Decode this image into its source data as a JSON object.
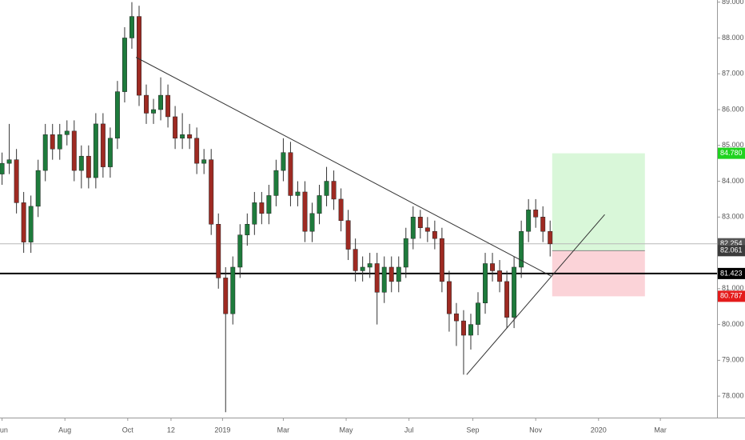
{
  "chart_data": {
    "type": "candlestick",
    "x": [
      0,
      7,
      14,
      21,
      28,
      35,
      42,
      49,
      56,
      63,
      70,
      77,
      84,
      91,
      98,
      105,
      112,
      119,
      126,
      133,
      140,
      147,
      154,
      161,
      168,
      175,
      182,
      189,
      196,
      203,
      210,
      217,
      224,
      231,
      238,
      245,
      252,
      259,
      266,
      273,
      280,
      287,
      294,
      301,
      308,
      315,
      322,
      329,
      336,
      343,
      350,
      357,
      364,
      371,
      378,
      385,
      392,
      399,
      406,
      413,
      420,
      427,
      434,
      441,
      448,
      455,
      462,
      469,
      476,
      483,
      490,
      497,
      504,
      511,
      518,
      525,
      532
    ],
    "open": [
      84.2,
      84.5,
      84.6,
      83.4,
      82.3,
      83.3,
      84.3,
      85.3,
      84.9,
      85.3,
      85.4,
      84.3,
      84.7,
      84.1,
      85.6,
      84.4,
      85.2,
      86.5,
      88.0,
      88.6,
      86.4,
      85.9,
      86.0,
      86.4,
      85.8,
      85.2,
      85.3,
      85.2,
      84.5,
      84.6,
      82.8,
      81.3,
      80.3,
      81.6,
      82.5,
      82.8,
      83.4,
      83.1,
      83.6,
      84.3,
      84.8,
      83.6,
      83.7,
      82.6,
      83.1,
      83.6,
      84.0,
      83.5,
      82.9,
      82.1,
      81.5,
      81.6,
      81.7,
      80.9,
      81.6,
      81.2,
      81.6,
      82.4,
      83.0,
      82.7,
      82.6,
      82.4,
      81.2,
      80.3,
      80.1,
      79.7,
      80.0,
      80.6,
      81.7,
      81.5,
      81.2,
      80.2,
      81.6,
      82.6,
      83.2,
      83.0,
      82.6
    ],
    "high": [
      84.8,
      85.6,
      84.9,
      83.7,
      83.6,
      84.6,
      85.6,
      85.6,
      85.6,
      85.7,
      85.7,
      85.0,
      85.0,
      85.9,
      85.9,
      85.5,
      86.8,
      88.3,
      89.0,
      88.9,
      86.7,
      86.3,
      86.9,
      86.7,
      86.1,
      85.9,
      85.6,
      85.5,
      84.9,
      84.9,
      83.1,
      81.6,
      81.9,
      82.8,
      83.1,
      83.7,
      83.7,
      83.9,
      84.6,
      85.2,
      85.1,
      84.0,
      84.0,
      83.4,
      83.9,
      84.4,
      84.3,
      83.8,
      83.2,
      82.4,
      81.9,
      82.0,
      82.0,
      81.9,
      81.9,
      81.9,
      82.7,
      83.3,
      83.2,
      83.0,
      82.9,
      82.7,
      81.5,
      80.6,
      80.4,
      80.3,
      80.9,
      82.0,
      82.0,
      81.8,
      81.5,
      81.9,
      82.9,
      83.5,
      83.5,
      83.3,
      82.9
    ],
    "low": [
      83.9,
      84.2,
      83.1,
      82.0,
      82.0,
      83.0,
      84.0,
      84.6,
      84.6,
      85.0,
      84.0,
      83.8,
      83.8,
      83.8,
      84.1,
      84.1,
      84.9,
      86.2,
      87.7,
      86.1,
      85.6,
      85.6,
      85.7,
      85.5,
      84.9,
      84.9,
      84.9,
      84.2,
      84.2,
      82.5,
      81.0,
      77.55,
      80.0,
      81.3,
      82.2,
      82.5,
      82.8,
      82.8,
      83.3,
      84.0,
      83.3,
      83.3,
      82.3,
      82.3,
      82.8,
      83.3,
      83.2,
      82.6,
      81.8,
      81.2,
      81.2,
      81.3,
      80.0,
      80.6,
      80.9,
      80.9,
      81.3,
      82.1,
      82.4,
      82.3,
      82.1,
      80.9,
      79.8,
      79.4,
      78.6,
      79.3,
      79.7,
      80.3,
      81.2,
      80.9,
      79.9,
      79.9,
      81.3,
      82.3,
      82.7,
      82.3,
      81.9
    ],
    "close": [
      84.5,
      84.6,
      83.4,
      82.3,
      83.3,
      84.3,
      85.3,
      84.9,
      85.3,
      85.4,
      84.3,
      84.7,
      84.1,
      85.6,
      84.4,
      85.2,
      86.5,
      88.0,
      88.6,
      86.4,
      85.9,
      86.0,
      86.4,
      85.8,
      85.2,
      85.3,
      85.2,
      84.5,
      84.6,
      82.8,
      81.3,
      80.3,
      81.6,
      82.5,
      82.8,
      83.4,
      83.1,
      83.6,
      84.3,
      84.8,
      83.6,
      83.7,
      82.6,
      83.1,
      83.6,
      84.0,
      83.5,
      82.9,
      82.1,
      81.5,
      81.6,
      81.7,
      80.9,
      81.6,
      81.2,
      81.6,
      82.4,
      83.0,
      82.7,
      82.6,
      82.4,
      81.2,
      80.3,
      80.1,
      79.7,
      80.0,
      80.6,
      81.7,
      81.5,
      81.2,
      80.2,
      81.6,
      82.6,
      83.2,
      83.0,
      82.6,
      82.25
    ],
    "up_color": "#1e7b3c",
    "down_color": "#9e2a22",
    "xlim": [
      -2,
      694
    ],
    "ylim": [
      77.4,
      89.06
    ],
    "xticks": [
      {
        "value": 0,
        "label": "Jun"
      },
      {
        "value": 61,
        "label": "Aug"
      },
      {
        "value": 122,
        "label": "Oct"
      },
      {
        "value": 164,
        "label": "12"
      },
      {
        "value": 214,
        "label": "2019"
      },
      {
        "value": 273,
        "label": "Mar"
      },
      {
        "value": 334,
        "label": "May"
      },
      {
        "value": 395,
        "label": "Jul"
      },
      {
        "value": 457,
        "label": "Sep"
      },
      {
        "value": 518,
        "label": "Nov"
      },
      {
        "value": 579,
        "label": "2020"
      },
      {
        "value": 639,
        "label": "Mar"
      }
    ],
    "yticks": [
      {
        "value": 78,
        "label": "78.000"
      },
      {
        "value": 79,
        "label": "79.000"
      },
      {
        "value": 80,
        "label": "80.000"
      },
      {
        "value": 81,
        "label": "81.000"
      },
      {
        "value": 82,
        "label": "82.000"
      },
      {
        "value": 83,
        "label": "83.000"
      },
      {
        "value": 84,
        "label": "84.000"
      },
      {
        "value": 85,
        "label": "85.000"
      },
      {
        "value": 86,
        "label": "86.000"
      },
      {
        "value": 87,
        "label": "87.000"
      },
      {
        "value": 88,
        "label": "88.000"
      },
      {
        "value": 89,
        "label": "89.000"
      }
    ],
    "trendlines": [
      {
        "x": [
          130,
          533
        ],
        "y": [
          87.46,
          81.35
        ]
      },
      {
        "x": [
          451,
          585
        ],
        "y": [
          78.6,
          83.07
        ]
      }
    ],
    "levels": [
      {
        "value": 81.423,
        "color": "#000000",
        "width": 2
      },
      {
        "value": 82.254,
        "color": "#b8b8b8",
        "width": 1
      }
    ],
    "position": {
      "x": [
        534,
        624
      ],
      "entry": 82.061,
      "target": 84.78,
      "stop": 80.787,
      "profit_color": "#d9f7d9",
      "loss_color": "#fbd3d8"
    },
    "price_labels": [
      {
        "value": 84.78,
        "label": "84.780",
        "color": "#1fd31f"
      },
      {
        "value": 82.254,
        "label": "82.254",
        "color": "#555555"
      },
      {
        "value": 82.061,
        "label": "82.061",
        "color": "#3b3b3b"
      },
      {
        "value": 81.423,
        "label": "81.423",
        "color": "#000000"
      },
      {
        "value": 80.787,
        "label": "80.787",
        "color": "#e41b1b"
      }
    ]
  }
}
